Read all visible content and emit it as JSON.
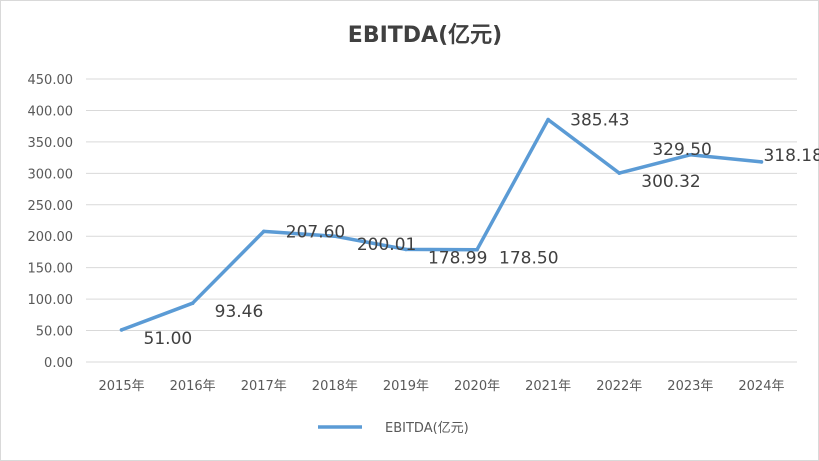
{
  "chart_data": {
    "type": "line",
    "title": "EBITDA(亿元)",
    "categories": [
      "2015年",
      "2016年",
      "2017年",
      "2018年",
      "2019年",
      "2020年",
      "2021年",
      "2022年",
      "2023年",
      "2024年"
    ],
    "series": [
      {
        "name": "EBITDA(亿元)",
        "values": [
          51.0,
          93.46,
          207.6,
          200.01,
          178.99,
          178.5,
          385.43,
          300.32,
          329.5,
          318.18
        ],
        "labels": [
          "51.00",
          "93.46",
          "207.60",
          "200.01",
          "178.99",
          "178.50",
          "385.43",
          "300.32",
          "329.50",
          "318.18"
        ],
        "color": "#5b9bd5"
      }
    ],
    "y_ticks": [
      "0.00",
      "50.00",
      "100.00",
      "150.00",
      "200.00",
      "250.00",
      "300.00",
      "350.00",
      "400.00",
      "450.00"
    ],
    "ylim": [
      0,
      450
    ],
    "xlabel": "",
    "ylabel": "",
    "grid": true,
    "legend_position": "bottom",
    "gridline_color": "#d9d9d9"
  }
}
